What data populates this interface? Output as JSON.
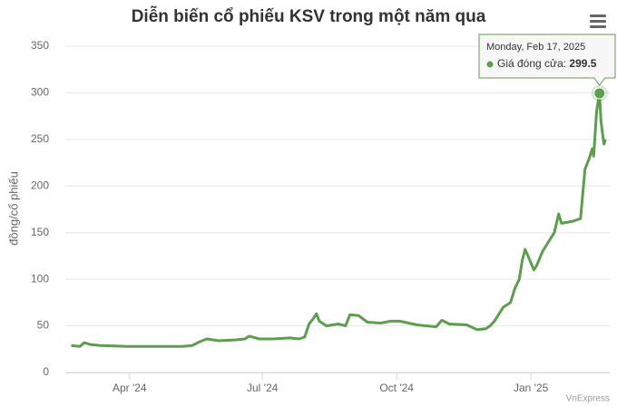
{
  "chart_data": {
    "type": "line",
    "title": "Diễn biến cổ phiếu KSV trong một năm qua",
    "y_label": "đồng/cổ phiếu",
    "credits": "VnExpress",
    "tooltip_date": "Monday, Feb 17, 2025",
    "x": [
      "2024-02-21",
      "2024-02-27",
      "2024-03-01",
      "2024-03-05",
      "2024-03-12",
      "2024-03-30",
      "2024-04-12",
      "2024-04-24",
      "2024-05-07",
      "2024-05-14",
      "2024-05-19",
      "2024-05-24",
      "2024-06-01",
      "2024-06-13",
      "2024-06-19",
      "2024-06-22",
      "2024-06-29",
      "2024-07-08",
      "2024-07-20",
      "2024-07-26",
      "2024-07-30",
      "2024-08-02",
      "2024-08-05",
      "2024-08-07",
      "2024-08-09",
      "2024-08-14",
      "2024-08-22",
      "2024-08-27",
      "2024-08-30",
      "2024-09-05",
      "2024-09-11",
      "2024-09-20",
      "2024-09-27",
      "2024-10-03",
      "2024-10-15",
      "2024-10-28",
      "2024-11-01",
      "2024-11-06",
      "2024-11-18",
      "2024-11-25",
      "2024-12-01",
      "2024-12-04",
      "2024-12-07",
      "2024-12-13",
      "2024-12-18",
      "2024-12-21",
      "2024-12-24",
      "2024-12-26",
      "2024-12-28",
      "2024-12-30",
      "2025-01-03",
      "2025-01-05",
      "2025-01-09",
      "2025-01-13",
      "2025-01-17",
      "2025-01-20",
      "2025-01-22",
      "2025-01-29",
      "2025-02-04",
      "2025-02-07",
      "2025-02-10",
      "2025-02-12",
      "2025-02-13",
      "2025-02-15",
      "2025-02-17",
      "2025-02-18",
      "2025-02-20",
      "2025-02-21"
    ],
    "series": [
      {
        "name": "Giá đóng cửa",
        "color": "#5c9e4e",
        "values": [
          29,
          28,
          32,
          30,
          29,
          28,
          28,
          28,
          28,
          29,
          33,
          36,
          34,
          35,
          36,
          39,
          36,
          36,
          37,
          36,
          38,
          52,
          58,
          63,
          55,
          50,
          52,
          50,
          62,
          61,
          54,
          53,
          55,
          55,
          51,
          49,
          56,
          52,
          51,
          46,
          47,
          50,
          55,
          70,
          75,
          90,
          100,
          120,
          132,
          125,
          110,
          115,
          130,
          140,
          150,
          170,
          160,
          162,
          165,
          218,
          230,
          240,
          232,
          280,
          299.5,
          270,
          245,
          250
        ]
      }
    ],
    "xlim": [
      "2024-02-17",
      "2025-02-24"
    ],
    "xticks": [
      {
        "value": "2024-04-01",
        "label": "Apr '24"
      },
      {
        "value": "2024-07-01",
        "label": "Jul '24"
      },
      {
        "value": "2024-10-01",
        "label": "Oct '24"
      },
      {
        "value": "2025-01-01",
        "label": "Jan '25"
      }
    ],
    "ylim": [
      0,
      350
    ],
    "yticks": [
      0,
      50,
      100,
      150,
      200,
      250,
      300,
      350
    ],
    "grid": true
  }
}
